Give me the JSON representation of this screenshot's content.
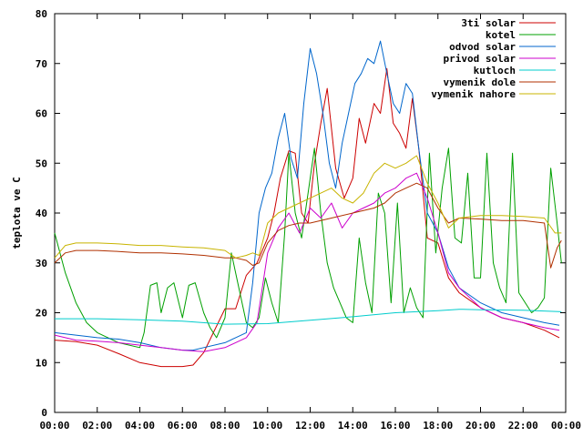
{
  "chart_data": {
    "type": "line",
    "title": "",
    "xlabel": "",
    "ylabel": "teplota ve C",
    "xlim": [
      0,
      24
    ],
    "ylim": [
      0,
      80
    ],
    "xticks": [
      "00:00",
      "02:00",
      "04:00",
      "06:00",
      "08:00",
      "10:00",
      "12:00",
      "14:00",
      "16:00",
      "18:00",
      "20:00",
      "22:00",
      "00:00"
    ],
    "yticks": [
      "0",
      "10",
      "20",
      "30",
      "40",
      "50",
      "60",
      "70",
      "80"
    ],
    "grid": false,
    "legend_position": "top-right",
    "series": [
      {
        "name": "3ti solar",
        "color": "#cc0000",
        "x": [
          0,
          1,
          2,
          3,
          4,
          5,
          6,
          6.5,
          7,
          8,
          8.5,
          9,
          9.5,
          10,
          10.3,
          10.6,
          11,
          11.3,
          11.6,
          11.9,
          12.2,
          12.5,
          12.8,
          13.2,
          13.6,
          14,
          14.3,
          14.6,
          15,
          15.3,
          15.6,
          15.9,
          16.2,
          16.5,
          16.8,
          17.1,
          17.5,
          18,
          18.5,
          19,
          20,
          21,
          22,
          23,
          23.7
        ],
        "y": [
          14.5,
          14.2,
          13.5,
          11.8,
          10,
          9.2,
          9.2,
          9.5,
          12,
          20.8,
          20.8,
          27.5,
          30,
          35,
          40,
          47,
          52.5,
          52,
          40,
          38,
          50,
          58,
          65,
          49,
          43,
          47,
          59,
          54,
          62,
          60,
          69,
          58,
          56,
          53,
          63,
          53,
          35,
          34,
          27,
          24,
          21,
          19,
          18,
          16.5,
          15
        ]
      },
      {
        "name": "kotel",
        "color": "#00a000",
        "x": [
          0,
          0.5,
          1,
          1.5,
          2,
          3,
          4,
          4.2,
          4.5,
          4.8,
          5,
          5.3,
          5.6,
          6,
          6.3,
          6.6,
          7,
          7.3,
          7.6,
          8,
          8.3,
          8.6,
          9,
          9.3,
          9.6,
          9.9,
          10.2,
          10.5,
          10.8,
          11,
          11.3,
          11.6,
          11.9,
          12.2,
          12.5,
          12.8,
          13.1,
          13.4,
          13.7,
          14,
          14.3,
          14.6,
          14.9,
          15.2,
          15.5,
          15.8,
          16.1,
          16.4,
          16.7,
          17,
          17.3,
          17.6,
          17.9,
          18.2,
          18.5,
          18.8,
          19.1,
          19.4,
          19.7,
          20,
          20.3,
          20.6,
          20.9,
          21.2,
          21.5,
          21.8,
          22.1,
          22.4,
          22.7,
          23,
          23.3,
          23.6,
          23.8
        ],
        "y": [
          36,
          28,
          22,
          18,
          16,
          14,
          13,
          16,
          25.5,
          26,
          20,
          25,
          26,
          19,
          25.5,
          26,
          20,
          17,
          15,
          19,
          32,
          26,
          18,
          17,
          19,
          27,
          22,
          18,
          36,
          52,
          40,
          35,
          44,
          53,
          40,
          30,
          25,
          22,
          19,
          18,
          35,
          26,
          20,
          44,
          40,
          22,
          42,
          20,
          25,
          21,
          19,
          52,
          32,
          45,
          53,
          35,
          34,
          48,
          27,
          27,
          52,
          30,
          25,
          22,
          52,
          24,
          22,
          20,
          21,
          23,
          49,
          38,
          30
        ]
      },
      {
        "name": "odvod solar",
        "color": "#0066cc",
        "x": [
          0,
          1,
          2,
          3,
          4,
          5,
          6,
          6.5,
          7,
          8,
          8.5,
          9,
          9.3,
          9.6,
          9.9,
          10.2,
          10.5,
          10.8,
          11.1,
          11.4,
          11.7,
          12,
          12.3,
          12.6,
          12.9,
          13.2,
          13.5,
          13.8,
          14.1,
          14.4,
          14.7,
          15,
          15.3,
          15.6,
          15.9,
          16.2,
          16.5,
          16.8,
          17.1,
          17.5,
          18,
          18.5,
          19,
          20,
          21,
          22,
          23,
          23.7
        ],
        "y": [
          16,
          15.5,
          15,
          14.7,
          14,
          13,
          12.5,
          12.5,
          13,
          14,
          15,
          16,
          26,
          40,
          45,
          48,
          55,
          60,
          51,
          47,
          62,
          73,
          68,
          60,
          50,
          45,
          54,
          60,
          66,
          68,
          71,
          70,
          74.5,
          68,
          62,
          60,
          66,
          64,
          53,
          40,
          36,
          29,
          25,
          22,
          20,
          19,
          18,
          17.5
        ]
      },
      {
        "name": "privod solar",
        "color": "#cc00cc",
        "x": [
          0,
          1,
          2,
          3,
          4,
          5,
          6,
          7,
          8,
          9,
          9.5,
          10,
          10.5,
          11,
          11.5,
          12,
          12.5,
          13,
          13.5,
          14,
          14.5,
          15,
          15.5,
          16,
          16.5,
          17,
          17.5,
          18,
          18.5,
          19,
          20,
          21,
          22,
          23,
          23.7
        ],
        "y": [
          15.5,
          14.5,
          14.3,
          14,
          13.5,
          13,
          12.5,
          12.2,
          13,
          15,
          18,
          32,
          37,
          40,
          36,
          41,
          39,
          42,
          37,
          40,
          41,
          42,
          44,
          45,
          47,
          48,
          43,
          36,
          28,
          25,
          21,
          19,
          18,
          17,
          16.5
        ]
      },
      {
        "name": "kutloch",
        "color": "#00cccc",
        "x": [
          0,
          2,
          4,
          6,
          8,
          10,
          12,
          14,
          16,
          18,
          19,
          20,
          22,
          23.8
        ],
        "y": [
          18.8,
          18.8,
          18.6,
          18.3,
          17.7,
          17.8,
          18.5,
          19.2,
          20,
          20.4,
          20.7,
          20.6,
          20.5,
          20.2
        ]
      },
      {
        "name": "vymenik dole",
        "color": "#b03000",
        "x": [
          0,
          0.5,
          1,
          2,
          3,
          4,
          5,
          6,
          7,
          8,
          8.5,
          9,
          9.3,
          9.6,
          10,
          10.5,
          11,
          11.5,
          12,
          13,
          14,
          15,
          15.5,
          16,
          16.5,
          17,
          17.5,
          18,
          18.5,
          19,
          20,
          21,
          22,
          23,
          23.3,
          23.6,
          23.8
        ],
        "y": [
          30,
          32,
          32.5,
          32.5,
          32.3,
          32,
          32,
          31.8,
          31.5,
          31,
          31,
          30.5,
          29.5,
          30,
          34,
          36.5,
          37.5,
          38,
          38,
          39,
          40,
          41,
          42,
          44,
          45,
          46,
          45,
          41,
          38,
          39,
          38.8,
          38.5,
          38.5,
          38,
          29,
          33,
          34.5
        ]
      },
      {
        "name": "vymenik nahore",
        "color": "#c8b400",
        "x": [
          0,
          0.5,
          1,
          2,
          3,
          4,
          5,
          6,
          7,
          8,
          8.5,
          9,
          9.3,
          9.6,
          10,
          10.5,
          11,
          11.5,
          12,
          12.5,
          13,
          13.5,
          14,
          14.5,
          15,
          15.5,
          16,
          16.5,
          17,
          17.5,
          18,
          18.5,
          19,
          20,
          21,
          22,
          23,
          23.5,
          23.8
        ],
        "y": [
          31,
          33.5,
          34,
          34,
          33.8,
          33.5,
          33.5,
          33.2,
          33,
          32.5,
          31,
          31.5,
          32,
          31.5,
          38,
          40,
          41,
          42,
          43,
          44,
          45,
          43,
          42,
          44,
          48,
          50,
          49,
          50,
          51.5,
          46,
          42,
          37,
          39,
          39.5,
          39.5,
          39.3,
          39,
          36,
          36
        ]
      }
    ]
  }
}
